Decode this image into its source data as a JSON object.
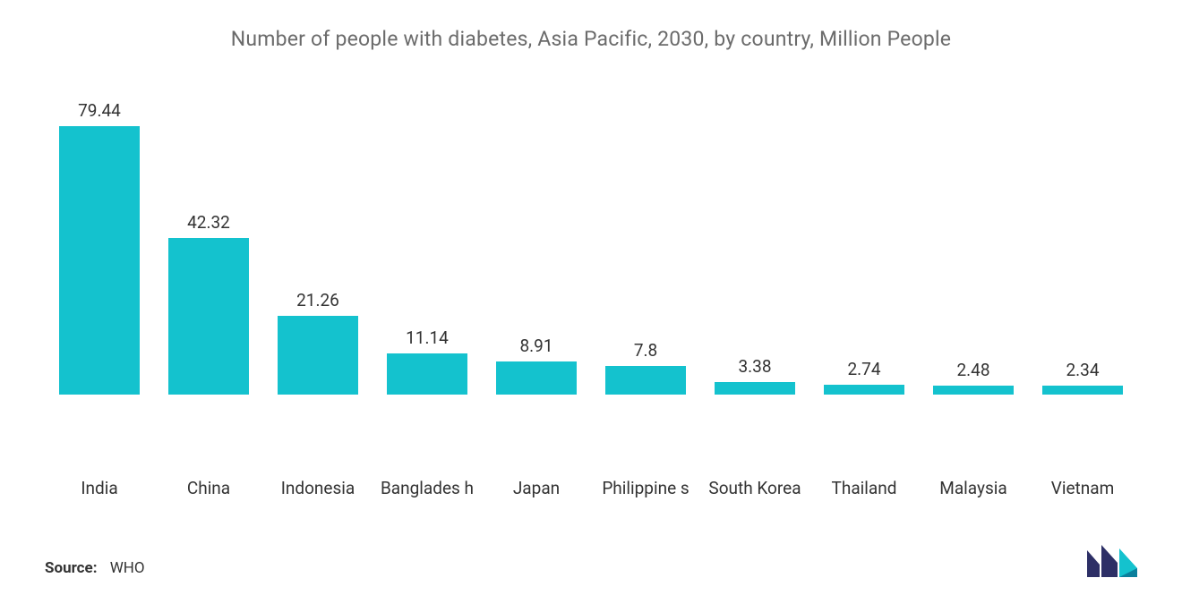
{
  "chart": {
    "type": "bar",
    "title": "Number of people with diabetes, Asia Pacific, 2030, by country, Million People",
    "title_fontsize": 23,
    "title_color": "#6b6b6b",
    "background_color": "#ffffff",
    "bar_color": "#14c2ce",
    "value_label_color": "#333333",
    "value_label_fontsize": 19,
    "axis_label_color": "#333333",
    "axis_label_fontsize": 19,
    "ylim": [
      0,
      80
    ],
    "bar_width_ratio": 0.74,
    "grid": false,
    "categories": [
      "India",
      "China",
      "Indonesia",
      "Banglades h",
      "Japan",
      "Philippine s",
      "South Korea",
      "Thailand",
      "Malaysia",
      "Vietnam"
    ],
    "values": [
      79.44,
      42.32,
      21.26,
      11.14,
      8.91,
      7.8,
      3.38,
      2.74,
      2.48,
      2.34
    ],
    "value_precision": 2
  },
  "source": {
    "label": "Source:",
    "value": "WHO",
    "fontsize": 17,
    "label_weight": 700
  },
  "logo": {
    "colors": {
      "left": "#2d2f66",
      "right_top": "#14c2ce",
      "right_bottom": "#0b7f9c"
    }
  }
}
